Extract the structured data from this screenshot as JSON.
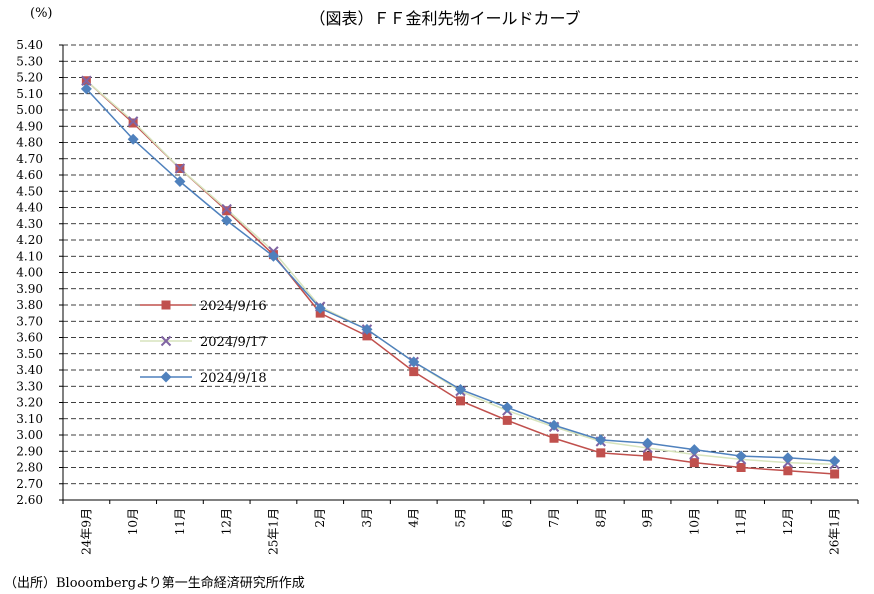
{
  "chart_data": {
    "type": "line",
    "title": "（図表）ＦＦ金利先物イールドカーブ",
    "ylabel": "(%)",
    "xlabel": "",
    "source": "（出所）Blooombergより第一生命経済研究所作成",
    "ylim": [
      2.6,
      5.4
    ],
    "ytick_step": 0.1,
    "y_ticks": [
      "2.60",
      "2.70",
      "2.80",
      "2.90",
      "3.00",
      "3.10",
      "3.20",
      "3.30",
      "3.40",
      "3.50",
      "3.60",
      "3.70",
      "3.80",
      "3.90",
      "4.00",
      "4.10",
      "4.20",
      "4.30",
      "4.40",
      "4.50",
      "4.60",
      "4.70",
      "4.80",
      "4.90",
      "5.00",
      "5.10",
      "5.20",
      "5.30",
      "5.40"
    ],
    "grid": true,
    "legend_position": "left-middle",
    "categories": [
      "24年9月",
      "10月",
      "11月",
      "12月",
      "25年1月",
      "2月",
      "3月",
      "4月",
      "5月",
      "6月",
      "7月",
      "8月",
      "9月",
      "10月",
      "11月",
      "12月",
      "26年1月"
    ],
    "series": [
      {
        "name": "2024/9/16",
        "color": "#c0504d",
        "marker": "square",
        "values": [
          5.18,
          4.92,
          4.64,
          4.38,
          4.11,
          3.75,
          3.61,
          3.39,
          3.21,
          3.09,
          2.98,
          2.89,
          2.87,
          2.83,
          2.8,
          2.78,
          2.76
        ]
      },
      {
        "name": "2024/9/17",
        "color": "#8064a2",
        "line_color": "#d7e4bd",
        "marker": "x",
        "values": [
          5.18,
          4.93,
          4.64,
          4.39,
          4.13,
          3.79,
          3.65,
          3.45,
          3.27,
          3.15,
          3.05,
          2.96,
          2.92,
          2.88,
          2.85,
          2.83,
          2.82
        ]
      },
      {
        "name": "2024/9/18",
        "color": "#4f81bd",
        "marker": "diamond",
        "values": [
          5.13,
          4.82,
          4.56,
          4.32,
          4.1,
          3.78,
          3.65,
          3.45,
          3.28,
          3.17,
          3.06,
          2.97,
          2.95,
          2.91,
          2.87,
          2.86,
          2.84
        ]
      }
    ]
  }
}
